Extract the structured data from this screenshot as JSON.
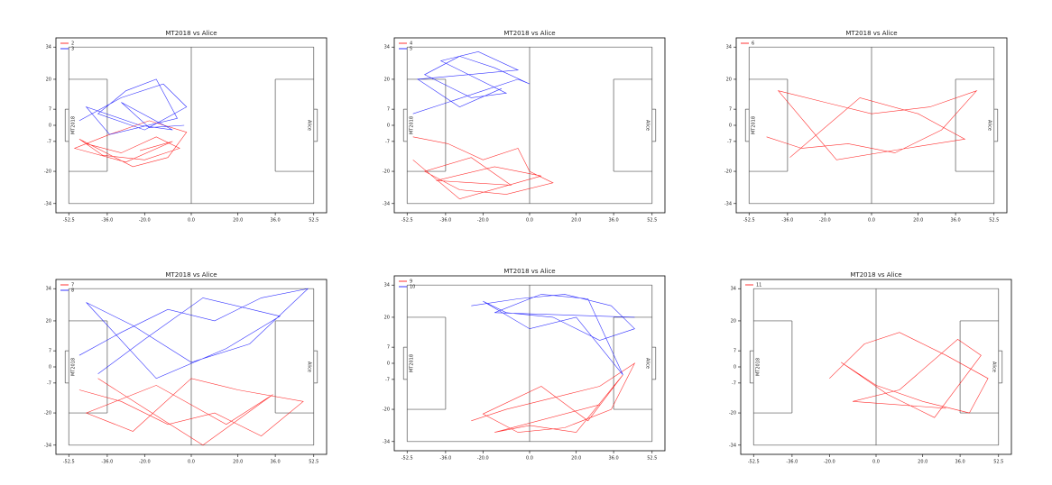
{
  "chart_data": [
    {
      "type": "line",
      "title": "MT2018 vs Alice",
      "left_team": "MT2018",
      "right_team": "Alice",
      "xlim": [
        -58,
        58
      ],
      "ylim": [
        -38,
        38
      ],
      "xticks": [
        -52.5,
        {
          "value": -36,
          "label": "-36.0"
        },
        {
          "value": -20,
          "label": "-20.0"
        },
        {
          "value": 0,
          "label": "0.0"
        },
        {
          "value": 20,
          "label": "20.0"
        },
        {
          "value": 36,
          "label": "36.0"
        },
        52.5
      ],
      "yticks": [
        -34,
        -20,
        -7,
        0,
        7,
        20,
        34
      ],
      "series": [
        {
          "name": "2",
          "color": "#ff0000",
          "x": [
            -45,
            -30,
            -15,
            -5,
            -20,
            -38,
            -48,
            -25,
            -10,
            -2,
            -18,
            -35,
            -50,
            -28,
            -8,
            -22
          ],
          "values": [
            -8,
            -12,
            -5,
            -10,
            -15,
            -13,
            -6,
            -18,
            -14,
            -3,
            2,
            -4,
            -10,
            -16,
            -7,
            -11
          ]
        },
        {
          "name": "3",
          "color": "#0000ff",
          "x": [
            -48,
            -30,
            -12,
            -2,
            -20,
            -40,
            -28,
            -15,
            -6,
            -35,
            -45,
            -22,
            -8,
            -30,
            -18,
            -3
          ],
          "values": [
            2,
            12,
            18,
            8,
            -2,
            5,
            15,
            20,
            3,
            -4,
            8,
            0,
            -2,
            10,
            -1,
            0
          ]
        }
      ]
    },
    {
      "type": "line",
      "title": "MT2018 vs Alice",
      "left_team": "MT2018",
      "right_team": "Alice",
      "xlim": [
        -58,
        58
      ],
      "ylim": [
        -38,
        38
      ],
      "xticks": [
        -52.5,
        {
          "value": -36,
          "label": "-36.0"
        },
        {
          "value": -20,
          "label": "-20.0"
        },
        {
          "value": 0,
          "label": "0.0"
        },
        {
          "value": 20,
          "label": "20.0"
        },
        {
          "value": 36,
          "label": "36.0"
        },
        52.5
      ],
      "yticks": [
        -34,
        -20,
        -7,
        0,
        7,
        20,
        34
      ],
      "series": [
        {
          "name": "4",
          "color": "#ff0000",
          "x": [
            -50,
            -35,
            -20,
            -5,
            0,
            10,
            -10,
            -30,
            -45,
            -25,
            -8,
            -40,
            -15,
            5,
            -30,
            -50
          ],
          "values": [
            -5,
            -8,
            -15,
            -10,
            -20,
            -25,
            -30,
            -28,
            -20,
            -14,
            -26,
            -24,
            -18,
            -22,
            -32,
            -15
          ]
        },
        {
          "name": "5",
          "color": "#0000ff",
          "x": [
            -50,
            -35,
            -20,
            -5,
            0,
            -15,
            -30,
            -45,
            -25,
            -10,
            -38,
            -22,
            -5,
            -48,
            -30,
            -12
          ],
          "values": [
            5,
            10,
            15,
            20,
            18,
            25,
            30,
            22,
            12,
            14,
            28,
            32,
            24,
            20,
            8,
            16
          ]
        }
      ]
    },
    {
      "type": "line",
      "title": "MT2018 vs Alice",
      "left_team": "MT2018",
      "right_team": "Alice",
      "xlim": [
        -58,
        58
      ],
      "ylim": [
        -38,
        38
      ],
      "xticks": [
        -52.5,
        {
          "value": -36,
          "label": "-36.0"
        },
        {
          "value": -20,
          "label": "-20.0"
        },
        {
          "value": 0,
          "label": "0.0"
        },
        {
          "value": 20,
          "label": "20.0"
        },
        {
          "value": 36,
          "label": "36.0"
        },
        52.5
      ],
      "yticks": [
        -34,
        -20,
        -7,
        0,
        7,
        20,
        34
      ],
      "series": [
        {
          "name": "6",
          "color": "#ff0000",
          "x": [
            -45,
            -30,
            -10,
            10,
            30,
            45,
            25,
            0,
            -20,
            -40,
            -15,
            15,
            40,
            20,
            -5,
            -35
          ],
          "values": [
            -5,
            -10,
            -8,
            -12,
            -2,
            15,
            8,
            5,
            10,
            15,
            -15,
            -10,
            -6,
            5,
            12,
            -14
          ]
        }
      ]
    },
    {
      "type": "line",
      "title": "MT2018 vs Alice",
      "left_team": "MT2018",
      "right_team": "Alice",
      "xlim": [
        -58,
        58
      ],
      "ylim": [
        -38,
        38
      ],
      "xticks": [
        -52.5,
        {
          "value": -36,
          "label": "-36.0"
        },
        {
          "value": -20,
          "label": "-20.0"
        },
        {
          "value": 0,
          "label": "0.0"
        },
        {
          "value": 20,
          "label": "20.0"
        },
        {
          "value": 36,
          "label": "36.0"
        },
        52.5
      ],
      "yticks": [
        -34,
        -20,
        -7,
        0,
        7,
        20,
        34
      ],
      "series": [
        {
          "name": "7",
          "color": "#ff0000",
          "x": [
            -48,
            -30,
            -10,
            10,
            30,
            48,
            20,
            0,
            -25,
            -45,
            -15,
            15,
            35,
            5,
            -20,
            -40
          ],
          "values": [
            -10,
            -15,
            -25,
            -20,
            -30,
            -15,
            -10,
            -5,
            -28,
            -20,
            -8,
            -25,
            -12,
            -34,
            -18,
            -5
          ]
        },
        {
          "name": "8",
          "color": "#0000ff",
          "x": [
            -48,
            -30,
            -10,
            10,
            30,
            50,
            25,
            0,
            -25,
            -45,
            -15,
            15,
            38,
            5,
            -20,
            -40
          ],
          "values": [
            5,
            15,
            25,
            20,
            30,
            34,
            10,
            2,
            18,
            28,
            -5,
            8,
            22,
            30,
            12,
            -3
          ]
        }
      ]
    },
    {
      "type": "line",
      "title": "MT2018 vs Alice",
      "left_team": "MT2018",
      "right_team": "Alice",
      "xlim": [
        -58,
        58
      ],
      "ylim": [
        -38,
        38
      ],
      "xticks": [
        -52.5,
        {
          "value": -36,
          "label": "-36.0"
        },
        {
          "value": -20,
          "label": "-20.0"
        },
        {
          "value": 0,
          "label": "0.0"
        },
        {
          "value": 20,
          "label": "20.0"
        },
        {
          "value": 36,
          "label": "36.0"
        },
        52.5
      ],
      "yticks": [
        -34,
        -20,
        -7,
        0,
        7,
        20,
        34
      ],
      "series": [
        {
          "name": "9",
          "color": "#ff0000",
          "x": [
            -25,
            -10,
            10,
            30,
            45,
            35,
            15,
            -5,
            -20,
            5,
            25,
            40,
            20,
            0,
            -15,
            30
          ],
          "values": [
            -25,
            -20,
            -15,
            -10,
            0,
            -20,
            -28,
            -30,
            -22,
            -10,
            -25,
            -5,
            -30,
            -27,
            -30,
            -18
          ]
        },
        {
          "name": "10",
          "color": "#0000ff",
          "x": [
            -25,
            -5,
            15,
            35,
            45,
            30,
            10,
            -10,
            -20,
            0,
            20,
            40,
            25,
            5,
            -15,
            45
          ],
          "values": [
            25,
            28,
            30,
            25,
            15,
            10,
            20,
            22,
            27,
            15,
            20,
            -5,
            28,
            30,
            22,
            20
          ]
        }
      ]
    },
    {
      "type": "line",
      "title": "MT2018 vs Alice",
      "left_team": "MT2018",
      "right_team": "Alice",
      "xlim": [
        -58,
        58
      ],
      "ylim": [
        -38,
        38
      ],
      "xticks": [
        -52.5,
        {
          "value": -36,
          "label": "-36.0"
        },
        {
          "value": -20,
          "label": "-20.0"
        },
        {
          "value": 0,
          "label": "0.0"
        },
        {
          "value": 20,
          "label": "20.0"
        },
        {
          "value": 36,
          "label": "36.0"
        },
        52.5
      ],
      "yticks": [
        -34,
        -20,
        -7,
        0,
        7,
        20,
        34
      ],
      "series": [
        {
          "name": "11",
          "color": "#ff0000",
          "x": [
            -20,
            -5,
            10,
            30,
            48,
            40,
            20,
            0,
            -15,
            5,
            25,
            45,
            35,
            10,
            -10,
            30
          ],
          "values": [
            -5,
            10,
            15,
            5,
            -5,
            -20,
            -15,
            -8,
            2,
            -12,
            -22,
            5,
            12,
            -10,
            -15,
            -18
          ]
        }
      ]
    }
  ]
}
